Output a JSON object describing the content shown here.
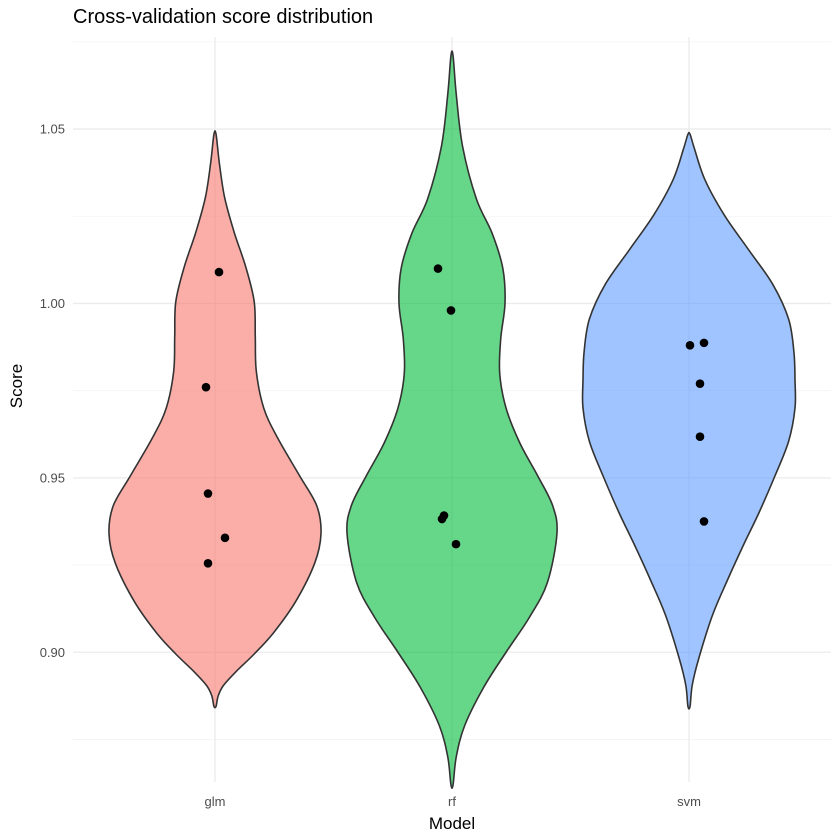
{
  "chart_data": {
    "type": "violin",
    "title": "Cross-validation score distribution",
    "xlabel": "Model",
    "ylabel": "Score",
    "categories": [
      "glm",
      "rf",
      "svm"
    ],
    "colors": [
      "#F8766D",
      "#00BA38",
      "#619CFF"
    ],
    "fill_opacity": 0.6,
    "ylim": [
      0.8628,
      1.0764
    ],
    "y_ticks": [
      0.9,
      0.95,
      1.0,
      1.05
    ],
    "y_tick_labels": [
      "0.90",
      "0.95",
      "1.00",
      "1.05"
    ],
    "grid": true,
    "legend": "none",
    "series": [
      {
        "name": "glm",
        "points": [
          {
            "jitter": 0.04,
            "y": 1.009
          },
          {
            "jitter": -0.09,
            "y": 0.976
          },
          {
            "jitter": -0.07,
            "y": 0.9455
          },
          {
            "jitter": 0.1,
            "y": 0.9328
          },
          {
            "jitter": -0.07,
            "y": 0.9255
          }
        ],
        "density": [
          [
            0.8845,
            0.01
          ],
          [
            0.8875,
            0.03
          ],
          [
            0.8905,
            0.08
          ],
          [
            0.8945,
            0.2
          ],
          [
            0.8995,
            0.37
          ],
          [
            0.9055,
            0.55
          ],
          [
            0.9145,
            0.76
          ],
          [
            0.9255,
            0.94
          ],
          [
            0.934,
            1.0
          ],
          [
            0.942,
            0.96
          ],
          [
            0.9505,
            0.8
          ],
          [
            0.9615,
            0.59
          ],
          [
            0.97,
            0.46
          ],
          [
            0.9805,
            0.39
          ],
          [
            0.9905,
            0.38
          ],
          [
            1.0005,
            0.37
          ],
          [
            1.0105,
            0.29
          ],
          [
            1.0205,
            0.18
          ],
          [
            1.0305,
            0.09
          ],
          [
            1.0405,
            0.04
          ],
          [
            1.0485,
            0.01
          ]
        ]
      },
      {
        "name": "rf",
        "points": [
          {
            "jitter": -0.14,
            "y": 1.01
          },
          {
            "jitter": -0.01,
            "y": 0.998
          },
          {
            "jitter": -0.08,
            "y": 0.9392
          },
          {
            "jitter": -0.1,
            "y": 0.9382
          },
          {
            "jitter": 0.04,
            "y": 0.931
          }
        ],
        "density": [
          [
            0.862,
            0.01
          ],
          [
            0.87,
            0.04
          ],
          [
            0.879,
            0.12
          ],
          [
            0.89,
            0.3
          ],
          [
            0.9,
            0.51
          ],
          [
            0.91,
            0.73
          ],
          [
            0.92,
            0.9
          ],
          [
            0.934,
            0.99
          ],
          [
            0.942,
            0.95
          ],
          [
            0.9505,
            0.81
          ],
          [
            0.96,
            0.64
          ],
          [
            0.97,
            0.51
          ],
          [
            0.98,
            0.45
          ],
          [
            0.99,
            0.46
          ],
          [
            1.0,
            0.5
          ],
          [
            1.01,
            0.48
          ],
          [
            1.02,
            0.38
          ],
          [
            1.03,
            0.23
          ],
          [
            1.045,
            0.1
          ],
          [
            1.06,
            0.04
          ],
          [
            1.071,
            0.01
          ]
        ]
      },
      {
        "name": "svm",
        "points": [
          {
            "jitter": 0.01,
            "y": 0.988
          },
          {
            "jitter": 0.15,
            "y": 0.9887
          },
          {
            "jitter": 0.11,
            "y": 0.977
          },
          {
            "jitter": 0.11,
            "y": 0.9618
          },
          {
            "jitter": 0.15,
            "y": 0.9375
          }
        ],
        "density": [
          [
            0.8845,
            0.01
          ],
          [
            0.8905,
            0.03
          ],
          [
            0.898,
            0.09
          ],
          [
            0.9105,
            0.22
          ],
          [
            0.9205,
            0.36
          ],
          [
            0.9305,
            0.51
          ],
          [
            0.94,
            0.66
          ],
          [
            0.9505,
            0.81
          ],
          [
            0.9605,
            0.94
          ],
          [
            0.97,
            1.0
          ],
          [
            0.978,
            1.0
          ],
          [
            0.986,
            0.99
          ],
          [
            0.9955,
            0.94
          ],
          [
            1.0055,
            0.79
          ],
          [
            1.0155,
            0.56
          ],
          [
            1.0255,
            0.33
          ],
          [
            1.0355,
            0.15
          ],
          [
            1.0445,
            0.05
          ],
          [
            1.0485,
            0.01
          ]
        ]
      }
    ]
  }
}
